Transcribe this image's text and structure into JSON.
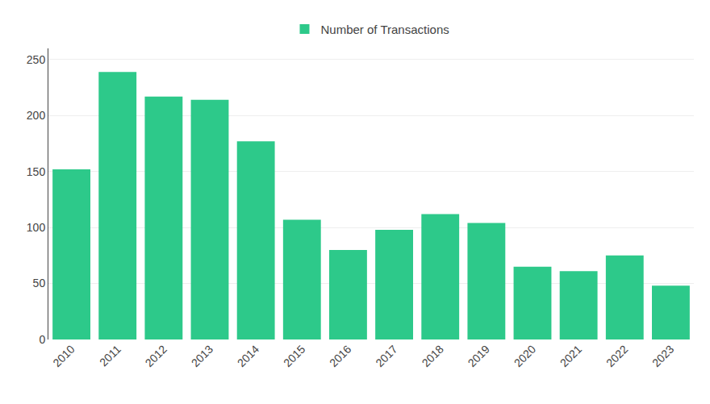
{
  "chart_data": {
    "type": "bar",
    "categories": [
      "2010",
      "2011",
      "2012",
      "2013",
      "2014",
      "2015",
      "2016",
      "2017",
      "2018",
      "2019",
      "2020",
      "2021",
      "2022",
      "2023"
    ],
    "series": [
      {
        "name": "Number of Transactions",
        "color": "#2DC98A",
        "values": [
          152,
          239,
          217,
          214,
          177,
          107,
          80,
          98,
          112,
          104,
          65,
          61,
          75,
          48
        ]
      }
    ],
    "ylim": [
      0,
      260
    ],
    "yticks": [
      0,
      50,
      100,
      150,
      200,
      250
    ],
    "grid": true,
    "legend": "top"
  }
}
